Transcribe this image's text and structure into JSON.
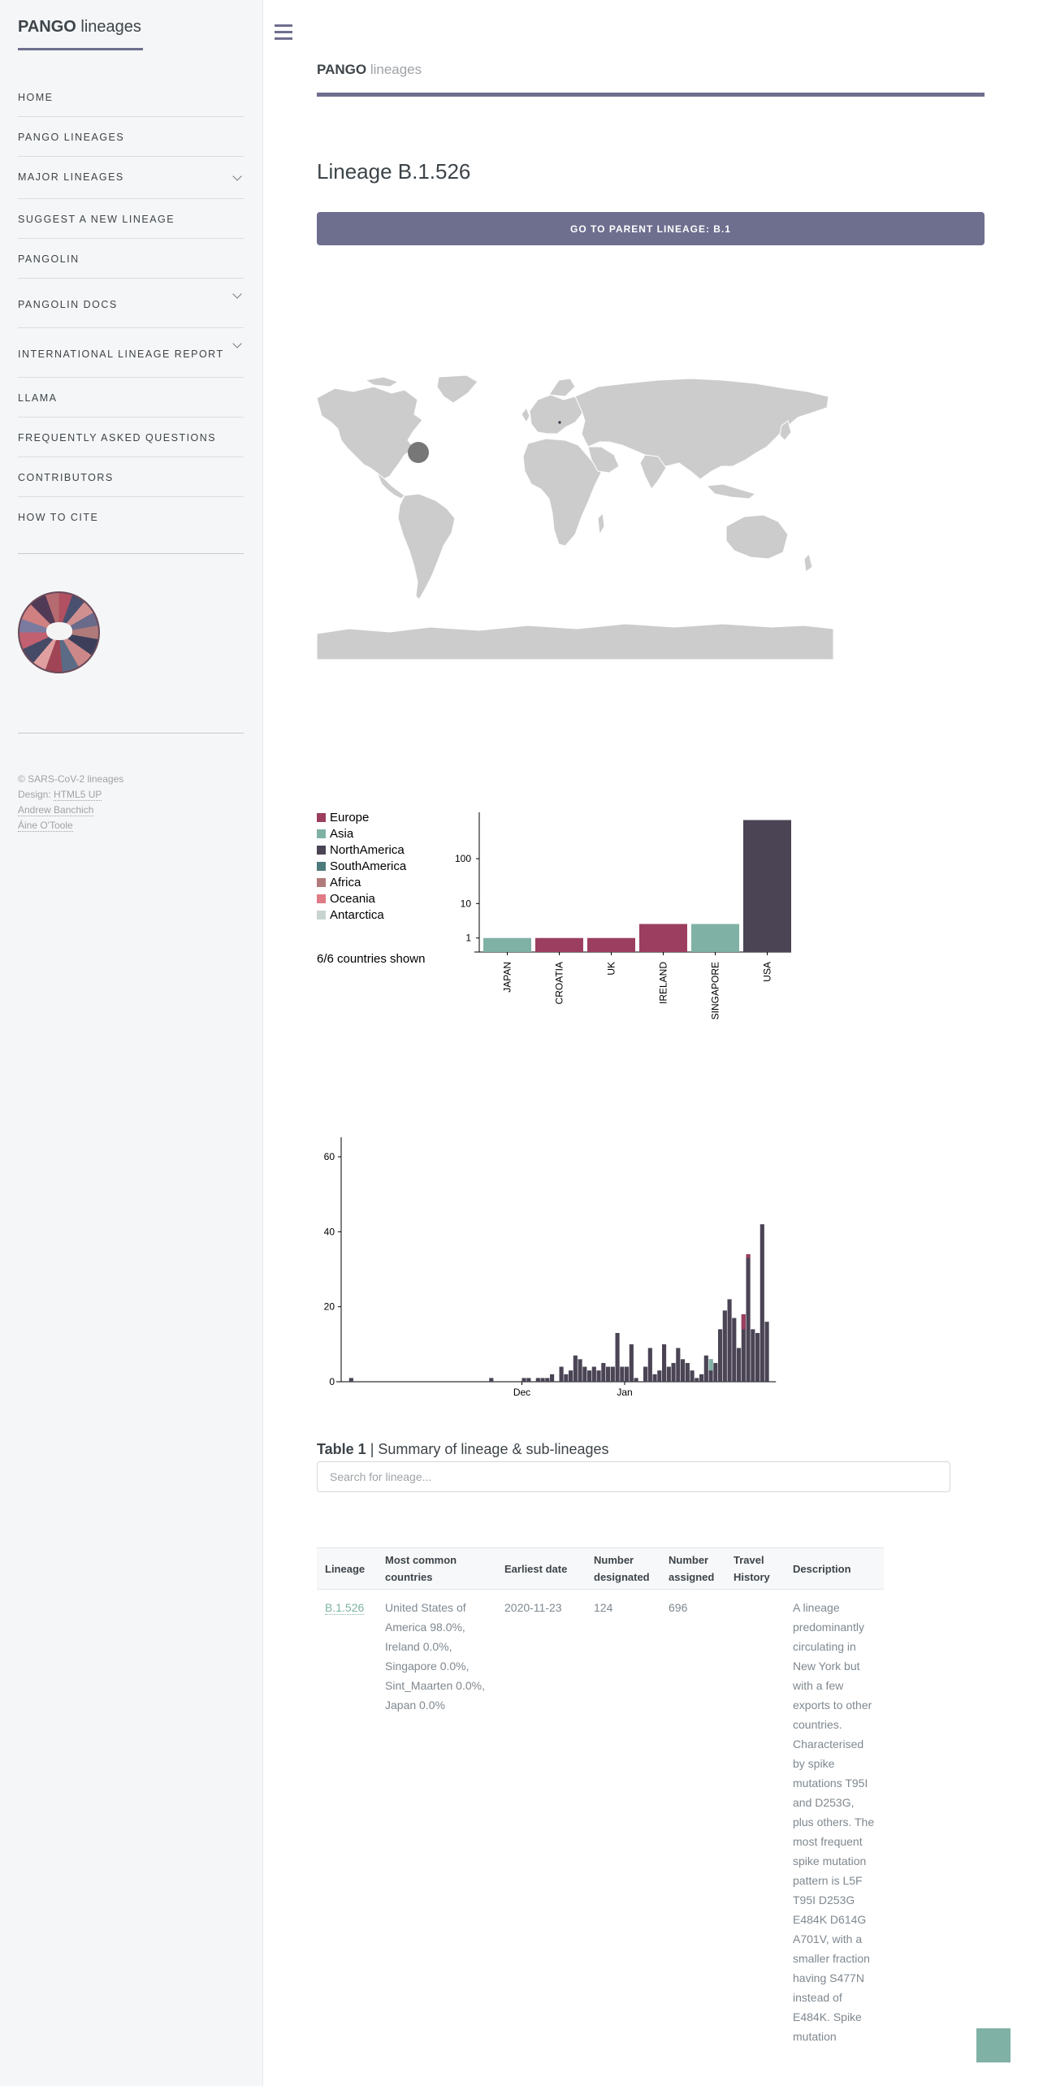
{
  "sidebar": {
    "brand_bold": "PANGO",
    "brand_rest": "lineages",
    "menu": [
      {
        "label": "HOME"
      },
      {
        "label": "PANGO LINEAGES"
      },
      {
        "label": "MAJOR LINEAGES"
      },
      {
        "label": "SUGGEST A NEW LINEAGE"
      },
      {
        "label": "PANGOLIN"
      },
      {
        "label": "PANGOLIN DOCS"
      },
      {
        "label": "INTERNATIONAL LINEAGE REPORT"
      },
      {
        "label": "LLAMA"
      },
      {
        "label": "FREQUENTLY ASKED QUESTIONS"
      },
      {
        "label": "CONTRIBUTORS"
      },
      {
        "label": "HOW TO CITE"
      }
    ],
    "footer": {
      "copyright": "© SARS-CoV-2 lineages",
      "design_label": "Design:",
      "design_link": "HTML5 UP",
      "author1": "Andrew Banchich",
      "author2": "Áine O'Toole"
    }
  },
  "header": {
    "brand_bold": "PANGO",
    "brand_rest": "lineages"
  },
  "page": {
    "title": "Lineage B.1.526",
    "parent_button": "GO TO PARENT LINEAGE: B.1"
  },
  "legend": {
    "items": [
      {
        "label": "Europe",
        "color": "#9b3e5f"
      },
      {
        "label": "Asia",
        "color": "#80b1a5"
      },
      {
        "label": "NorthAmerica",
        "color": "#4a4455"
      },
      {
        "label": "SouthAmerica",
        "color": "#4d7a7a"
      },
      {
        "label": "Africa",
        "color": "#b07a7a"
      },
      {
        "label": "Oceania",
        "color": "#e07a85"
      },
      {
        "label": "Antarctica",
        "color": "#c8d4d0"
      }
    ],
    "shown": "6/6 countries shown"
  },
  "chart_data": [
    {
      "type": "bar",
      "scale": "log",
      "categories": [
        "JAPAN",
        "CROATIA",
        "UK",
        "IRELAND",
        "SINGAPORE",
        "USA"
      ],
      "values": [
        1,
        1,
        1,
        3,
        3,
        681
      ],
      "region": [
        "Asia",
        "Europe",
        "Europe",
        "Europe",
        "Asia",
        "NorthAmerica"
      ],
      "yticks": [
        "1",
        "10",
        "100"
      ]
    },
    {
      "type": "bar",
      "xticks": [
        "Dec",
        "Jan"
      ],
      "yticks": [
        "0",
        "20",
        "40",
        "60"
      ],
      "ylim": [
        0,
        65
      ],
      "values": [
        0,
        1,
        0,
        0,
        0,
        0,
        0,
        0,
        0,
        0,
        0,
        0,
        0,
        0,
        0,
        0,
        0,
        0,
        0,
        0,
        0,
        0,
        0,
        0,
        0,
        0,
        0,
        0,
        0,
        0,
        0,
        1,
        0,
        0,
        0,
        0,
        0,
        0,
        1,
        1,
        0,
        1,
        1,
        1,
        2,
        0,
        4,
        2,
        3,
        7,
        6,
        4,
        3,
        4,
        3,
        5,
        4,
        4,
        13,
        4,
        4,
        10,
        1,
        0,
        4,
        9,
        2,
        3,
        10,
        4,
        5,
        9,
        6,
        5,
        3,
        1,
        2,
        7,
        6,
        5,
        14,
        19,
        22,
        17,
        9,
        18,
        34,
        14,
        13,
        42,
        16
      ],
      "europe_overlay": {
        "85": 4,
        "86": 1
      },
      "asia_overlay": {
        "78": 3
      }
    }
  ],
  "table": {
    "caption_bold": "Table 1",
    "caption_rest": " | Summary of lineage & sub-lineages",
    "search_placeholder": "Search for lineage...",
    "headers": [
      "Lineage",
      "Most common countries",
      "Earliest date",
      "Number designated",
      "Number assigned",
      "Travel History",
      "Description"
    ],
    "rows": [
      {
        "lineage": "B.1.526",
        "countries": "United States of America 98.0%, Ireland 0.0%, Singapore 0.0%, Sint_Maarten 0.0%, Japan 0.0%",
        "earliest": "2020-11-23",
        "designated": "124",
        "assigned": "696",
        "travel": "",
        "description": "A lineage predominantly circulating in New York but with a few exports to other countries. Characterised by spike mutations T95I and D253G, plus others. The most frequent spike mutation pattern is L5F T95I D253G E484K D614G A701V, with a smaller fraction having S477N instead of E484K. Spike mutation"
      }
    ]
  },
  "colors": {
    "accent": "#6e6e8f",
    "north_america": "#4a4455",
    "europe": "#9b3e5f",
    "asia": "#80b1a5",
    "land": "#cccccc"
  }
}
